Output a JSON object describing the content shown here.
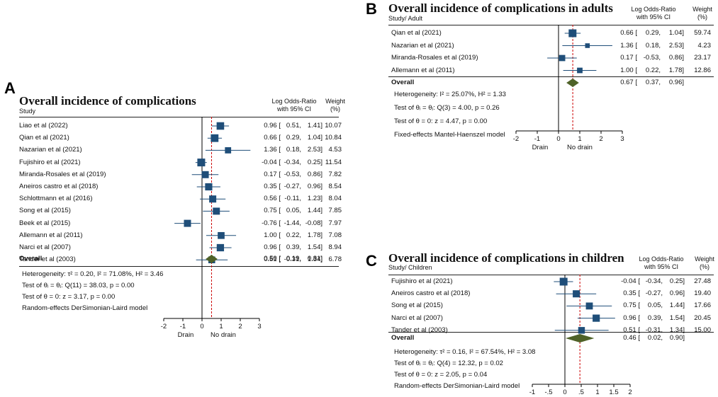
{
  "chart_data": [
    {
      "type": "forest",
      "panel": "A",
      "title": "Overall incidence of complications",
      "study_header": "Study",
      "col_header_effect": [
        "Log Odds-Ratio",
        "with 95% CI"
      ],
      "col_header_weight": [
        "Weight",
        "(%)"
      ],
      "xlim": [
        -2,
        3
      ],
      "ticks": [
        -2,
        -1,
        0,
        1,
        2,
        3
      ],
      "tick_labels": [
        "-2",
        "-1",
        "0",
        "1",
        "2",
        "3"
      ],
      "xlabel_left": "Drain",
      "xlabel_right": "No drain",
      "colors": {
        "marker": "#1f4e79",
        "diamond": "#4f6228",
        "null_line": "#000000",
        "overall_line": "#cc0000"
      },
      "studies": [
        {
          "label": "Liao et al (2022)",
          "estimate": 0.96,
          "lo": 0.51,
          "hi": 1.41,
          "weight": 10.07,
          "est_text": "0.96 [",
          "lo_text": "0.51,",
          "hi_text": "1.41]",
          "weight_text": "10.07"
        },
        {
          "label": "Qian et al (2021)",
          "estimate": 0.66,
          "lo": 0.29,
          "hi": 1.04,
          "weight": 10.84,
          "est_text": "0.66 [",
          "lo_text": "0.29,",
          "hi_text": "1.04]",
          "weight_text": "10.84"
        },
        {
          "label": "Nazarian et al (2021)",
          "estimate": 1.36,
          "lo": 0.18,
          "hi": 2.53,
          "weight": 4.53,
          "est_text": "1.36 [",
          "lo_text": "0.18,",
          "hi_text": "2.53]",
          "weight_text": "4.53"
        },
        {
          "label": "Fujishiro et al (2021)",
          "estimate": -0.04,
          "lo": -0.34,
          "hi": 0.25,
          "weight": 11.54,
          "est_text": "-0.04 [",
          "lo_text": "-0.34,",
          "hi_text": "0.25]",
          "weight_text": "11.54"
        },
        {
          "label": "Miranda-Rosales et al (2019)",
          "estimate": 0.17,
          "lo": -0.53,
          "hi": 0.86,
          "weight": 7.82,
          "est_text": "0.17 [",
          "lo_text": "-0.53,",
          "hi_text": "0.86]",
          "weight_text": "7.82"
        },
        {
          "label": "Aneiros castro et al (2018)",
          "estimate": 0.35,
          "lo": -0.27,
          "hi": 0.96,
          "weight": 8.54,
          "est_text": "0.35 [",
          "lo_text": "-0.27,",
          "hi_text": "0.96]",
          "weight_text": "8.54"
        },
        {
          "label": "Schlottmann et al (2016)",
          "estimate": 0.56,
          "lo": -0.11,
          "hi": 1.23,
          "weight": 8.04,
          "est_text": "0.56 [",
          "lo_text": "-0.11,",
          "hi_text": "1.23]",
          "weight_text": "8.04"
        },
        {
          "label": "Song et al (2015)",
          "estimate": 0.75,
          "lo": 0.05,
          "hi": 1.44,
          "weight": 7.85,
          "est_text": "0.75 [",
          "lo_text": "0.05,",
          "hi_text": "1.44]",
          "weight_text": "7.85"
        },
        {
          "label": "Beek et al (2015)",
          "estimate": -0.76,
          "lo": -1.44,
          "hi": -0.08,
          "weight": 7.97,
          "est_text": "-0.76 [",
          "lo_text": "-1.44,",
          "hi_text": "-0.08]",
          "weight_text": "7.97"
        },
        {
          "label": "Allemann et al (2011)",
          "estimate": 1.0,
          "lo": 0.22,
          "hi": 1.78,
          "weight": 7.08,
          "est_text": "1.00 [",
          "lo_text": "0.22,",
          "hi_text": "1.78]",
          "weight_text": "7.08"
        },
        {
          "label": "Narci et al (2007)",
          "estimate": 0.96,
          "lo": 0.39,
          "hi": 1.54,
          "weight": 8.94,
          "est_text": "0.96 [",
          "lo_text": "0.39,",
          "hi_text": "1.54]",
          "weight_text": "8.94"
        },
        {
          "label": "Tander et al (2003)",
          "estimate": 0.51,
          "lo": -0.31,
          "hi": 1.34,
          "weight": 6.78,
          "est_text": "0.51 [",
          "lo_text": "-0.31,",
          "hi_text": "1.34]",
          "weight_text": "6.78"
        }
      ],
      "overall": {
        "label": "Overall",
        "estimate": 0.5,
        "lo": 0.19,
        "hi": 0.81,
        "est_text": "0.50 [",
        "lo_text": "0.19,",
        "hi_text": "0.81]"
      },
      "stats": [
        "Heterogeneity: τ² = 0.20, I² = 71.08%, H² = 3.46",
        "Test of θᵢ = θⱼ: Q(11) = 38.03, p = 0.00",
        "Test of θ = 0: z = 3.17, p = 0.00",
        "Random-effects DerSimonian-Laird model"
      ]
    },
    {
      "type": "forest",
      "panel": "B",
      "title": "Overall incidence of complications in adults",
      "study_header": "Study/ Adult",
      "col_header_effect": [
        "Log Odds-Ratio",
        "with 95% CI"
      ],
      "col_header_weight": [
        "Weight",
        "(%)"
      ],
      "xlim": [
        -2,
        3
      ],
      "ticks": [
        -2,
        -1,
        0,
        1,
        2,
        3
      ],
      "tick_labels": [
        "-2",
        "-1",
        "0",
        "1",
        "2",
        "3"
      ],
      "xlabel_left": "Drain",
      "xlabel_right": "No drain",
      "colors": {
        "marker": "#1f4e79",
        "diamond": "#4f6228",
        "null_line": "#000000",
        "overall_line": "#cc0000"
      },
      "studies": [
        {
          "label": "Qian et al (2021)",
          "estimate": 0.66,
          "lo": 0.29,
          "hi": 1.04,
          "weight": 59.74,
          "est_text": "0.66 [",
          "lo_text": "0.29,",
          "hi_text": "1.04]",
          "weight_text": "59.74"
        },
        {
          "label": "Nazarian et al (2021)",
          "estimate": 1.36,
          "lo": 0.18,
          "hi": 2.53,
          "weight": 4.23,
          "est_text": "1.36 [",
          "lo_text": "0.18,",
          "hi_text": "2.53]",
          "weight_text": "4.23"
        },
        {
          "label": "Miranda-Rosales et al (2019)",
          "estimate": 0.17,
          "lo": -0.53,
          "hi": 0.86,
          "weight": 23.17,
          "est_text": "0.17 [",
          "lo_text": "-0.53,",
          "hi_text": "0.86]",
          "weight_text": "23.17"
        },
        {
          "label": "Allemann et al (2011)",
          "estimate": 1.0,
          "lo": 0.22,
          "hi": 1.78,
          "weight": 12.86,
          "est_text": "1.00 [",
          "lo_text": "0.22,",
          "hi_text": "1.78]",
          "weight_text": "12.86"
        }
      ],
      "overall": {
        "label": "Overall",
        "estimate": 0.67,
        "lo": 0.37,
        "hi": 0.96,
        "est_text": "0.67 [",
        "lo_text": "0.37,",
        "hi_text": "0.96]"
      },
      "stats": [
        "Heterogeneity: I² = 25.07%, H² = 1.33",
        "Test of θᵢ = θⱼ: Q(3) = 4.00, p = 0.26",
        "Test of θ = 0: z = 4.47, p = 0.00",
        "Fixed-effects Mantel-Haenszel model"
      ]
    },
    {
      "type": "forest",
      "panel": "C",
      "title": "Overall incidence of complications in children",
      "study_header": "Study/ Children",
      "col_header_effect": [
        "Log Odds-Ratio",
        "with 95% CI"
      ],
      "col_header_weight": [
        "Weight",
        "(%)"
      ],
      "xlim": [
        -1,
        2
      ],
      "ticks": [
        -1,
        -0.5,
        0,
        0.5,
        1,
        1.5,
        2
      ],
      "tick_labels": [
        "-1",
        "-.5",
        "0",
        ".5",
        "1",
        "1.5",
        "2"
      ],
      "xlabel_left": "Drain",
      "xlabel_right": "No drain",
      "colors": {
        "marker": "#1f4e79",
        "diamond": "#4f6228",
        "null_line": "#000000",
        "overall_line": "#cc0000"
      },
      "studies": [
        {
          "label": "Fujishiro et al (2021)",
          "estimate": -0.04,
          "lo": -0.34,
          "hi": 0.25,
          "weight": 27.48,
          "est_text": "-0.04 [",
          "lo_text": "-0.34,",
          "hi_text": "0.25]",
          "weight_text": "27.48"
        },
        {
          "label": "Aneiros castro et al (2018)",
          "estimate": 0.35,
          "lo": -0.27,
          "hi": 0.96,
          "weight": 19.4,
          "est_text": "0.35 [",
          "lo_text": "-0.27,",
          "hi_text": "0.96]",
          "weight_text": "19.40"
        },
        {
          "label": "Song et al (2015)",
          "estimate": 0.75,
          "lo": 0.05,
          "hi": 1.44,
          "weight": 17.66,
          "est_text": "0.75 [",
          "lo_text": "0.05,",
          "hi_text": "1.44]",
          "weight_text": "17.66"
        },
        {
          "label": "Narci et al (2007)",
          "estimate": 0.96,
          "lo": 0.39,
          "hi": 1.54,
          "weight": 20.45,
          "est_text": "0.96 [",
          "lo_text": "0.39,",
          "hi_text": "1.54]",
          "weight_text": "20.45"
        },
        {
          "label": "Tander et al (2003)",
          "estimate": 0.51,
          "lo": -0.31,
          "hi": 1.34,
          "weight": 15.0,
          "est_text": "0.51 [",
          "lo_text": "-0.31,",
          "hi_text": "1.34]",
          "weight_text": "15.00"
        }
      ],
      "overall": {
        "label": "Overall",
        "estimate": 0.46,
        "lo": 0.02,
        "hi": 0.9,
        "est_text": "0.46 [",
        "lo_text": "0.02,",
        "hi_text": "0.90]"
      },
      "stats": [
        "Heterogeneity: τ² = 0.16, I² = 67.54%, H² = 3.08",
        "Test of θᵢ = θⱼ: Q(4) = 12.32, p = 0.02",
        "Test of θ = 0: z = 2.05, p = 0.04",
        "Random-effects DerSimonian-Laird model"
      ]
    }
  ]
}
